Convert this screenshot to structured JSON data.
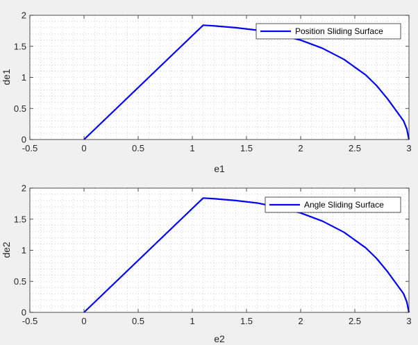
{
  "figure": {
    "background": "#f0f0f0"
  },
  "chart_data": [
    {
      "type": "line",
      "xlabel": "e1",
      "ylabel": "de1",
      "xlim": [
        -0.5,
        3
      ],
      "ylim": [
        0,
        2
      ],
      "xticks": [
        -0.5,
        0,
        0.5,
        1,
        1.5,
        2,
        2.5,
        3
      ],
      "xtick_labels": [
        "-0.5",
        "0",
        "0.5",
        "1",
        "1.5",
        "2",
        "2.5",
        "3"
      ],
      "yticks": [
        0,
        0.5,
        1,
        1.5,
        2
      ],
      "ytick_labels": [
        "0",
        "0.5",
        "1",
        "1.5",
        "2"
      ],
      "grid": "minor dotted",
      "legend": "top-right",
      "series": [
        {
          "name": "Position Sliding Surface",
          "color": "#0000ff",
          "x": [
            0,
            1.1,
            1.2,
            1.4,
            1.6,
            1.8,
            2.0,
            2.2,
            2.4,
            2.6,
            2.7,
            2.8,
            2.9,
            2.95,
            2.98,
            3.0
          ],
          "y": [
            0,
            1.84,
            1.83,
            1.8,
            1.76,
            1.69,
            1.6,
            1.47,
            1.29,
            1.04,
            0.87,
            0.66,
            0.42,
            0.3,
            0.17,
            0
          ]
        }
      ]
    },
    {
      "type": "line",
      "xlabel": "e2",
      "ylabel": "de2",
      "xlim": [
        -0.5,
        3
      ],
      "ylim": [
        0,
        2
      ],
      "xticks": [
        -0.5,
        0,
        0.5,
        1,
        1.5,
        2,
        2.5,
        3
      ],
      "xtick_labels": [
        "-0.5",
        "0",
        "0.5",
        "1",
        "1.5",
        "2",
        "2.5",
        "3"
      ],
      "yticks": [
        0,
        0.5,
        1,
        1.5,
        2
      ],
      "ytick_labels": [
        "0",
        "0.5",
        "1",
        "1.5",
        "2"
      ],
      "grid": "minor dotted",
      "legend": "top-right",
      "series": [
        {
          "name": "Angle Sliding Surface",
          "color": "#0000ff",
          "x": [
            0,
            1.1,
            1.2,
            1.4,
            1.6,
            1.8,
            2.0,
            2.2,
            2.4,
            2.6,
            2.7,
            2.8,
            2.9,
            2.95,
            2.98,
            3.0
          ],
          "y": [
            0,
            1.84,
            1.83,
            1.8,
            1.76,
            1.69,
            1.6,
            1.47,
            1.29,
            1.04,
            0.87,
            0.66,
            0.42,
            0.3,
            0.17,
            0
          ]
        }
      ]
    }
  ]
}
